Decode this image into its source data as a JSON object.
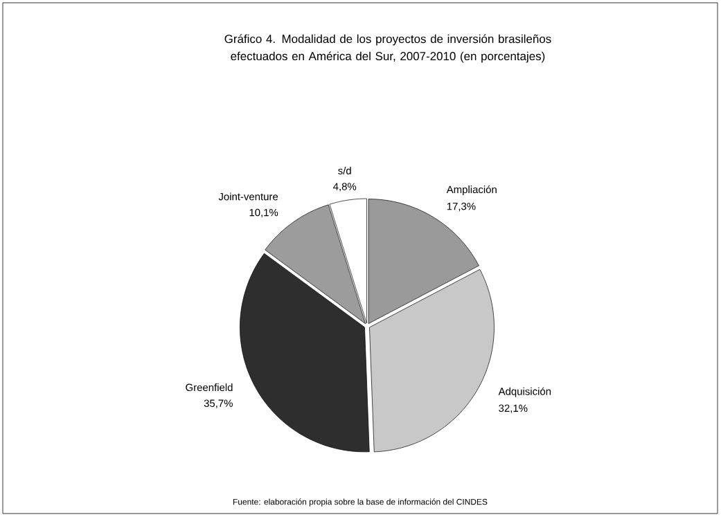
{
  "chart_data": {
    "type": "pie",
    "title": "Gráfico 4. Modalidad de los proyectos de inversión brasileños efectuados en América del Sur, 2007-2010 (en porcentajes)",
    "categories": [
      "Ampliación",
      "Adquisición",
      "Greenfield",
      "Joint-venture",
      "s/d"
    ],
    "values": [
      17.3,
      32.1,
      35.7,
      10.1,
      4.8
    ],
    "value_labels": [
      "17,3%",
      "32,1%",
      "35,7%",
      "10,1%",
      "4,8%"
    ],
    "colors": [
      "#9a9a9a",
      "#c8c8c8",
      "#2e2e2e",
      "#9c9c9c",
      "#ffffff"
    ],
    "annotations": [
      "Fuente: elaboración propia sobre la base de información del CINDES"
    ]
  }
}
